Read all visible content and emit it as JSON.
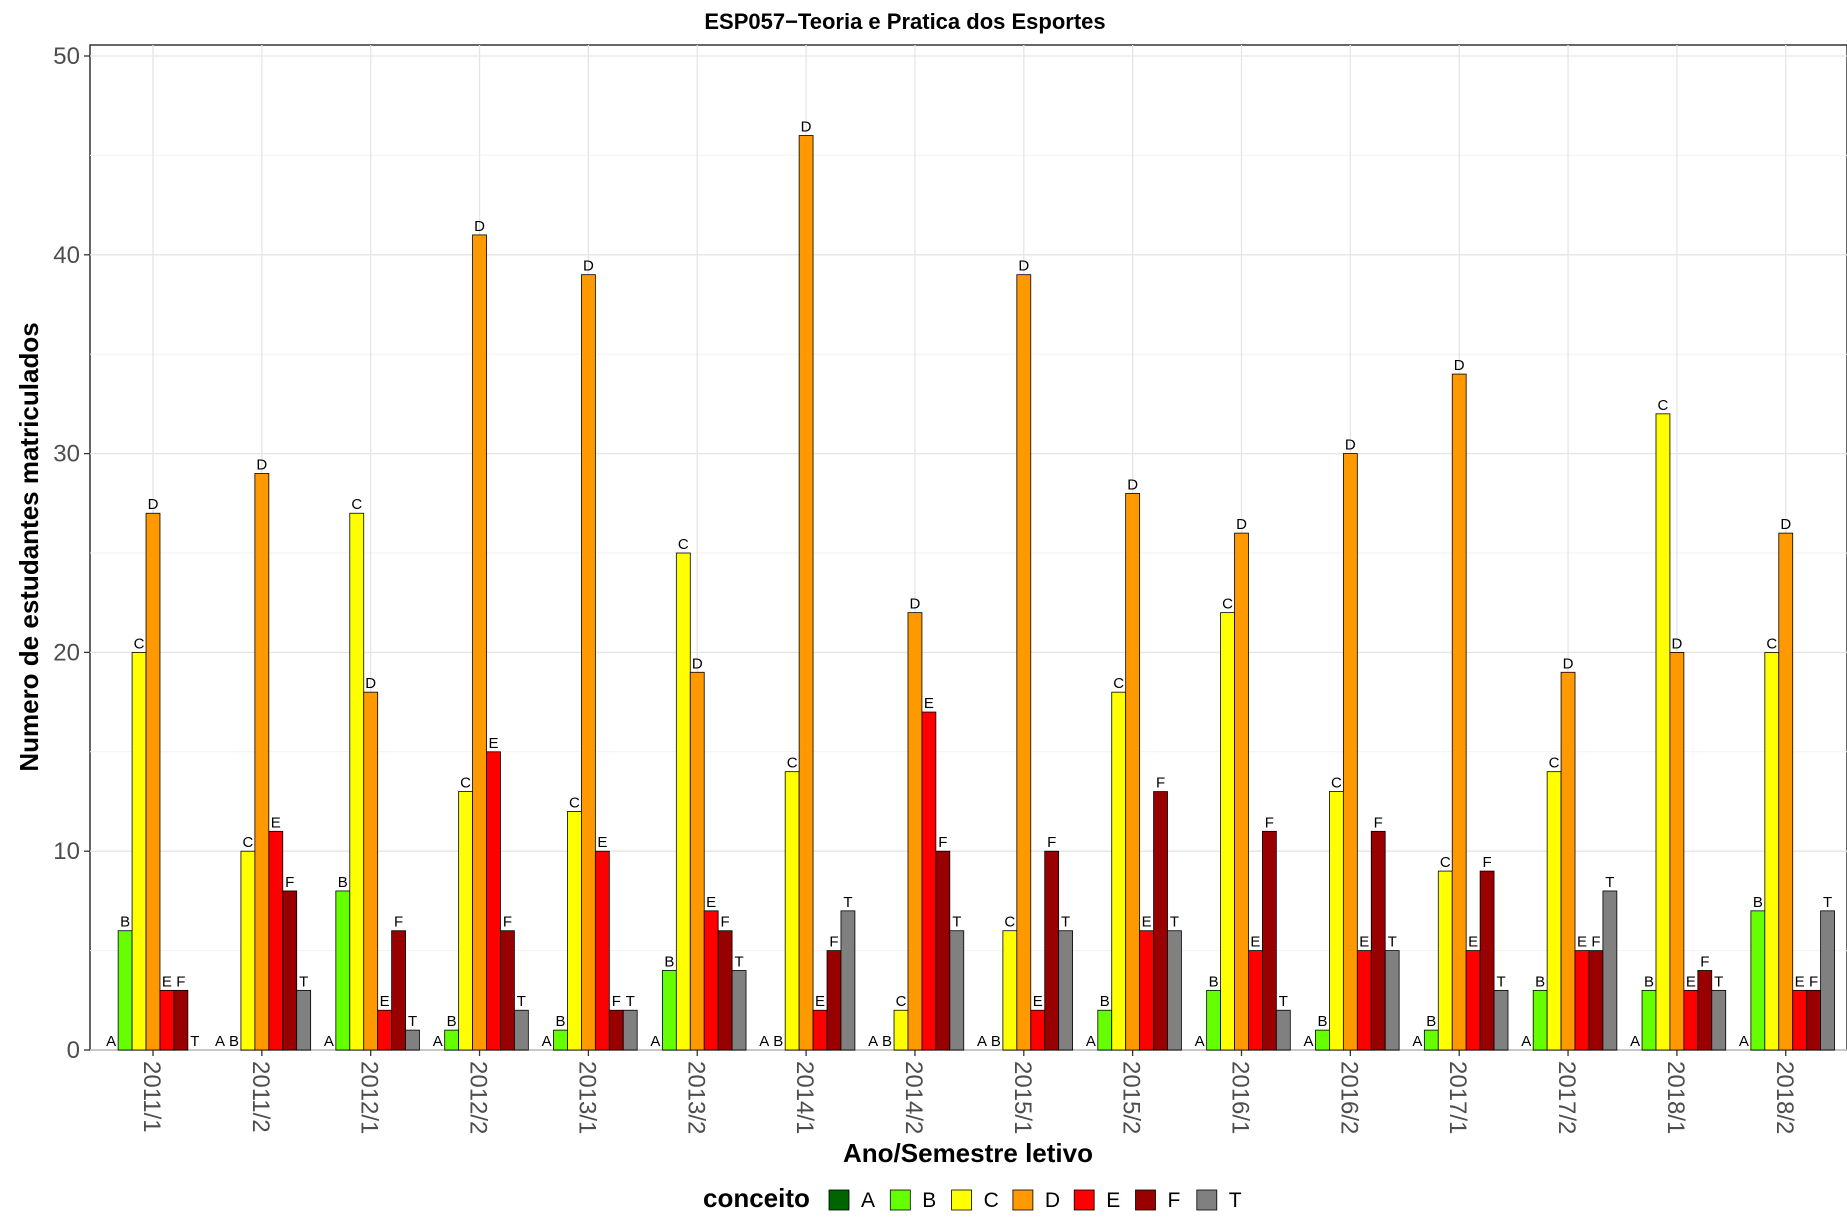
{
  "chart_data": {
    "type": "bar",
    "title": "ESP057−Teoria e Pratica dos Esportes",
    "xlabel": "Ano/Semestre letivo",
    "ylabel": "Numero de estudantes matriculados",
    "ylim": [
      0,
      50
    ],
    "yticks": [
      0,
      10,
      20,
      30,
      40,
      50
    ],
    "grid": true,
    "legend_position": "bottom",
    "legend_title": "conceito",
    "categories": [
      "2011/1",
      "2011/2",
      "2012/1",
      "2012/2",
      "2013/1",
      "2013/2",
      "2014/1",
      "2014/2",
      "2015/1",
      "2015/2",
      "2016/1",
      "2016/2",
      "2017/1",
      "2017/2",
      "2018/1",
      "2018/2"
    ],
    "series": [
      {
        "name": "A",
        "color": "#006400",
        "values": [
          0,
          0,
          0,
          0,
          0,
          0,
          0,
          0,
          0,
          0,
          0,
          0,
          0,
          0,
          0,
          0
        ]
      },
      {
        "name": "B",
        "color": "#66FF00",
        "values": [
          6,
          0,
          8,
          1,
          1,
          4,
          0,
          0,
          0,
          2,
          3,
          1,
          1,
          3,
          3,
          7
        ]
      },
      {
        "name": "C",
        "color": "#FFFF00",
        "values": [
          20,
          10,
          27,
          13,
          12,
          25,
          14,
          2,
          6,
          18,
          22,
          13,
          9,
          14,
          32,
          20
        ]
      },
      {
        "name": "D",
        "color": "#FF9900",
        "values": [
          27,
          29,
          18,
          41,
          39,
          19,
          46,
          22,
          39,
          28,
          26,
          30,
          34,
          19,
          20,
          26
        ]
      },
      {
        "name": "E",
        "color": "#FF0000",
        "values": [
          3,
          11,
          2,
          15,
          10,
          7,
          2,
          17,
          2,
          6,
          5,
          5,
          5,
          5,
          3,
          3
        ]
      },
      {
        "name": "F",
        "color": "#990000",
        "values": [
          3,
          8,
          6,
          6,
          2,
          6,
          5,
          10,
          10,
          13,
          11,
          11,
          9,
          5,
          4,
          3
        ]
      },
      {
        "name": "T",
        "color": "#808080",
        "values": [
          0,
          3,
          1,
          2,
          2,
          4,
          7,
          6,
          6,
          6,
          2,
          5,
          3,
          8,
          3,
          7
        ]
      }
    ]
  }
}
